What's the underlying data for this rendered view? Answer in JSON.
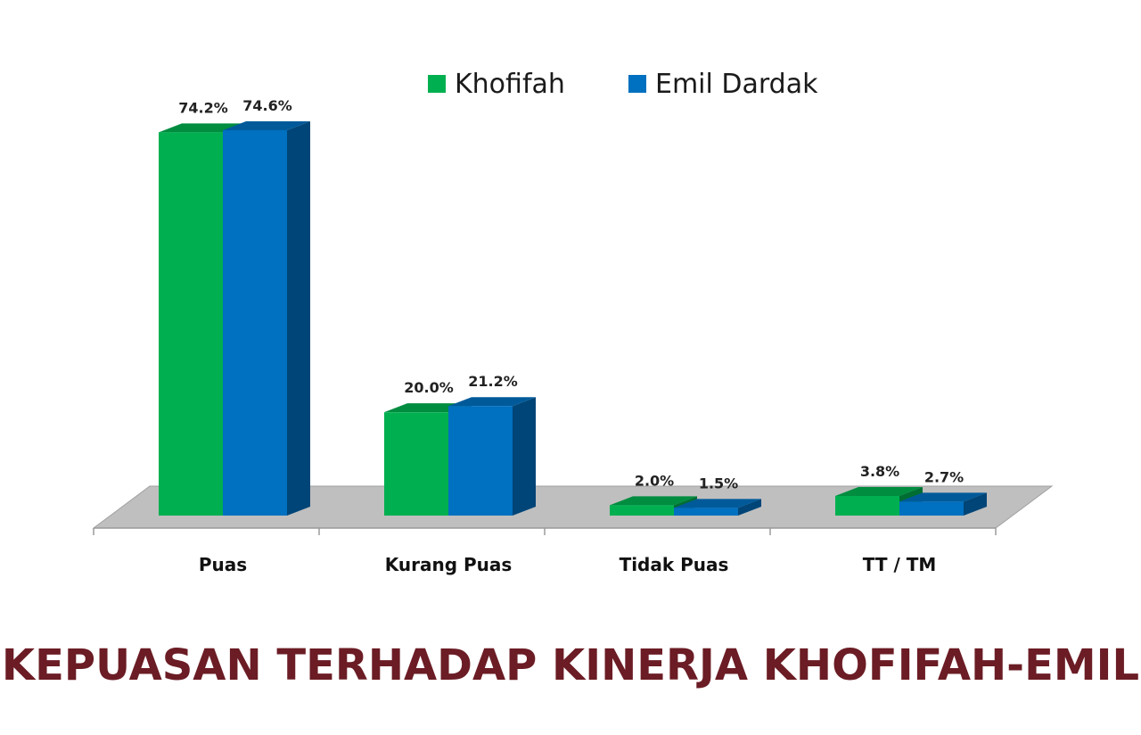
{
  "chart_data": {
    "type": "bar",
    "title": "KEPUASAN TERHADAP KINERJA KHOFIFAH-EMIL",
    "categories": [
      "Puas",
      "Kurang Puas",
      "Tidak Puas",
      "TT / TM"
    ],
    "series": [
      {
        "name": "Khofifah",
        "color": "#00b050",
        "values": [
          74.2,
          20.0,
          2.0,
          3.8
        ],
        "labels": [
          "74.2%",
          "20.0%",
          "2.0%",
          "3.8%"
        ]
      },
      {
        "name": "Emil Dardak",
        "color": "#0070c0",
        "values": [
          74.6,
          21.2,
          1.5,
          2.7
        ],
        "labels": [
          "74.6%",
          "21.2%",
          "1.5%",
          "2.7%"
        ]
      }
    ],
    "ylim": [
      0,
      74.6
    ],
    "grid": false,
    "legend_position": "top-center",
    "three_d": true
  }
}
